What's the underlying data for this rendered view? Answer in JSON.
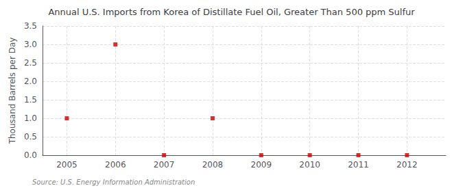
{
  "chart_data": {
    "type": "scatter",
    "title": "Annual U.S. Imports from Korea of Distillate Fuel Oil, Greater Than 500 ppm Sulfur",
    "ylabel": "Thousand Barrels per Day",
    "annotations": [
      "Source: U.S. Energy Information Administration"
    ],
    "x": [
      2005,
      2006,
      2007,
      2008,
      2009,
      2010,
      2011,
      2012
    ],
    "values": [
      0.9986,
      3.0,
      0.0,
      1.0,
      0.0,
      0.0,
      0.0,
      0.0
    ],
    "color": "#cc0000",
    "marker": "square",
    "xlim": [
      2004.5,
      2012.8
    ],
    "xticks": [
      2005,
      2006,
      2007,
      2008,
      2009,
      2010,
      2011,
      2012
    ],
    "ylim": [
      0.0,
      3.5
    ],
    "yticks": [
      {
        "value": 0.0,
        "label": "0.0"
      },
      0.5,
      {
        "value": 1.0,
        "label": "1.0"
      },
      1.5,
      {
        "value": 2.0,
        "label": "2.0"
      },
      2.5,
      {
        "value": 3.0,
        "label": "3.0"
      },
      3.5
    ],
    "grid": true
  }
}
